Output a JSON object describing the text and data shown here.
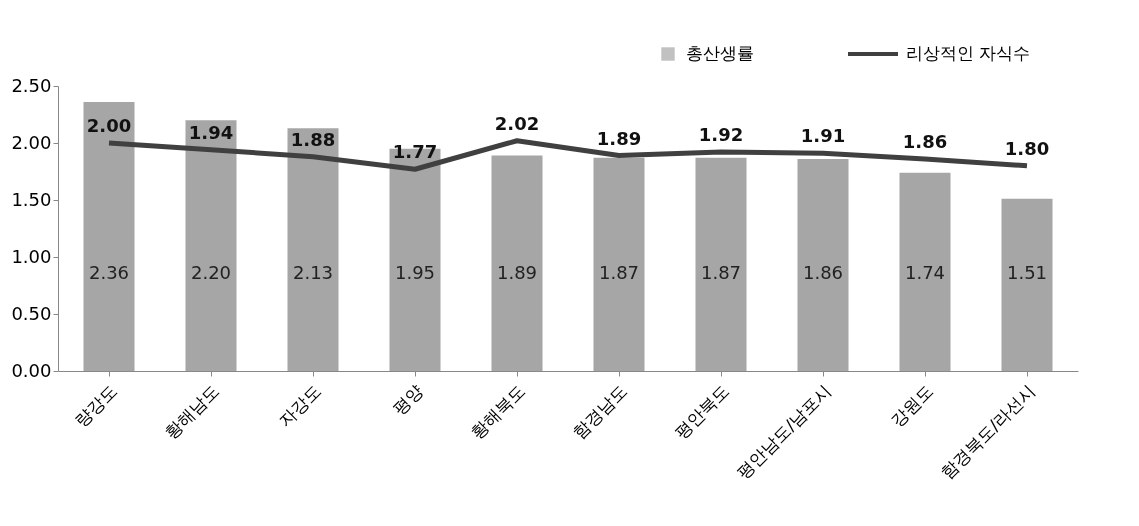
{
  "chart_data": {
    "type": "bar",
    "categories": [
      "량강도",
      "황해남도",
      "자강도",
      "평양",
      "황해북도",
      "함경남도",
      "평안북도",
      "평안남도/남포시",
      "강원도",
      "함경북도/라선시"
    ],
    "series": [
      {
        "name": "총산생률",
        "color": "#a6a6a6",
        "values": [
          2.36,
          2.2,
          2.13,
          1.95,
          1.89,
          1.87,
          1.87,
          1.86,
          1.74,
          1.51
        ],
        "value_labels": [
          "2.36",
          "2.20",
          "2.13",
          "1.95",
          "1.89",
          "1.87",
          "1.87",
          "1.86",
          "1.74",
          "1.51"
        ]
      },
      {
        "name": "리상적인 자식수",
        "type": "line",
        "color": "#404040",
        "values": [
          2.0,
          1.94,
          1.88,
          1.77,
          2.02,
          1.89,
          1.92,
          1.91,
          1.86,
          1.8
        ],
        "value_labels": [
          "2.00",
          "1.94",
          "1.88",
          "1.77",
          "2.02",
          "1.89",
          "1.92",
          "1.91",
          "1.86",
          "1.80"
        ]
      }
    ],
    "ylim": [
      0,
      2.5
    ],
    "yticks": [
      {
        "value": 0,
        "label": "0.00"
      },
      {
        "value": 0.5,
        "label": "0.50"
      },
      {
        "value": 1,
        "label": "1.00"
      },
      {
        "value": 1.5,
        "label": "1.50"
      },
      {
        "value": 2,
        "label": "2.00"
      },
      {
        "value": 2.5,
        "label": "2.50"
      }
    ],
    "grid": false,
    "legend": "top right"
  }
}
